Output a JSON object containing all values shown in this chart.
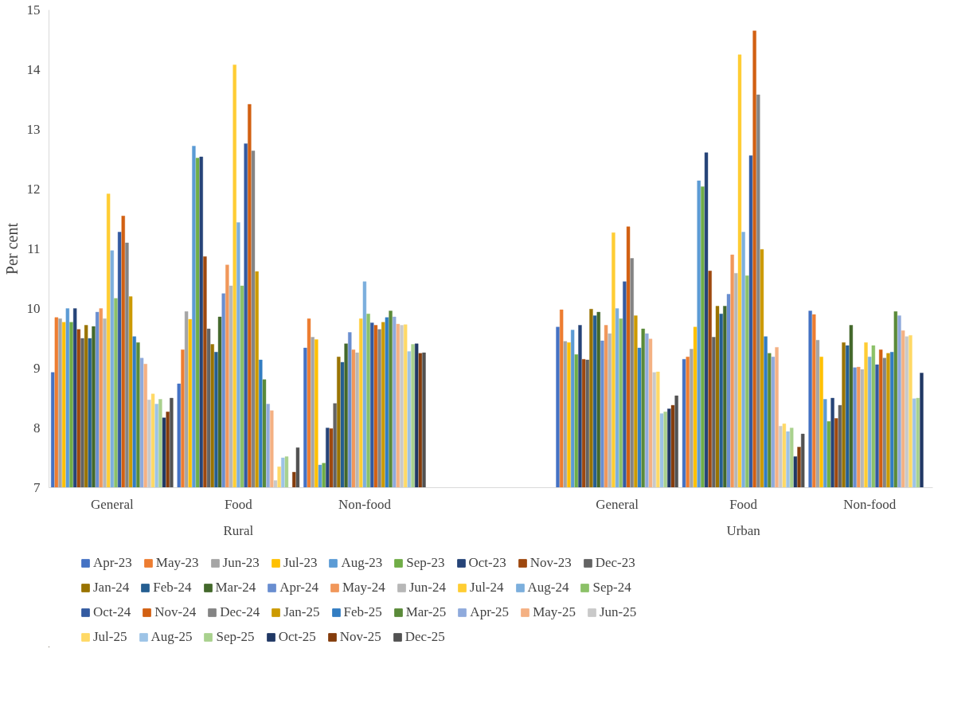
{
  "chart_data": {
    "type": "bar",
    "ylabel": "Per cent",
    "categories": [
      "General",
      "Food",
      "Non-food",
      null,
      "General",
      "Food",
      "Non-food"
    ],
    "annotations": [
      "Rural",
      "Urban"
    ],
    "ylim": [
      7,
      15
    ],
    "yticks": [
      7,
      8,
      9,
      10,
      11,
      12,
      13,
      14,
      15
    ],
    "legend": "bottom",
    "series": [
      {
        "name": "Apr-23",
        "color": "#4472c4",
        "values": [
          8.93,
          8.74,
          9.34,
          null,
          9.69,
          9.15,
          9.96
        ]
      },
      {
        "name": "May-23",
        "color": "#ed7d31",
        "values": [
          9.85,
          9.31,
          9.83,
          null,
          9.98,
          9.19,
          9.9
        ]
      },
      {
        "name": "Jun-23",
        "color": "#a5a5a5",
        "values": [
          9.83,
          9.95,
          9.52,
          null,
          9.45,
          9.32,
          9.47
        ]
      },
      {
        "name": "Jul-23",
        "color": "#ffc000",
        "values": [
          9.77,
          9.82,
          9.48,
          null,
          9.43,
          9.69,
          9.19
        ]
      },
      {
        "name": "Aug-23",
        "color": "#5b9bd5",
        "values": [
          10.0,
          12.72,
          7.38,
          null,
          9.64,
          12.14,
          8.48
        ]
      },
      {
        "name": "Sep-23",
        "color": "#70ad47",
        "values": [
          9.77,
          12.52,
          7.41,
          null,
          9.23,
          12.04,
          8.11
        ]
      },
      {
        "name": "Oct-23",
        "color": "#264478",
        "values": [
          10.0,
          12.54,
          8.0,
          null,
          9.72,
          12.61,
          8.5
        ]
      },
      {
        "name": "Nov-23",
        "color": "#9e480e",
        "values": [
          9.65,
          10.87,
          7.99,
          null,
          9.15,
          10.63,
          8.16
        ]
      },
      {
        "name": "Dec-23",
        "color": "#636363",
        "values": [
          9.5,
          9.66,
          8.41,
          null,
          9.14,
          9.52,
          8.38
        ]
      },
      {
        "name": "Jan-24",
        "color": "#997300",
        "values": [
          9.72,
          9.4,
          9.19,
          null,
          9.99,
          10.04,
          9.43
        ]
      },
      {
        "name": "Feb-24",
        "color": "#255e91",
        "values": [
          9.5,
          9.27,
          9.1,
          null,
          9.88,
          9.91,
          9.38
        ]
      },
      {
        "name": "Mar-24",
        "color": "#43682b",
        "values": [
          9.7,
          9.86,
          9.41,
          null,
          9.94,
          10.04,
          9.72
        ]
      },
      {
        "name": "Apr-24",
        "color": "#698ed0",
        "values": [
          9.94,
          10.25,
          9.6,
          null,
          9.46,
          10.24,
          9.01
        ]
      },
      {
        "name": "May-24",
        "color": "#f1975a",
        "values": [
          10.0,
          10.73,
          9.31,
          null,
          9.72,
          10.9,
          9.02
        ]
      },
      {
        "name": "Jun-24",
        "color": "#b7b7b7",
        "values": [
          9.83,
          10.38,
          9.26,
          null,
          9.58,
          10.59,
          8.98
        ]
      },
      {
        "name": "Jul-24",
        "color": "#ffcd33",
        "values": [
          11.92,
          14.08,
          9.83,
          null,
          11.27,
          14.25,
          9.43
        ]
      },
      {
        "name": "Aug-24",
        "color": "#7cafdd",
        "values": [
          10.97,
          11.44,
          10.45,
          null,
          10.0,
          11.28,
          9.19
        ]
      },
      {
        "name": "Sep-24",
        "color": "#8cc168",
        "values": [
          10.17,
          10.38,
          9.91,
          null,
          9.83,
          10.55,
          9.38
        ]
      },
      {
        "name": "Oct-24",
        "color": "#335aa1",
        "values": [
          11.28,
          12.76,
          9.76,
          null,
          10.45,
          12.56,
          9.06
        ]
      },
      {
        "name": "Nov-24",
        "color": "#d26012",
        "values": [
          11.55,
          13.42,
          9.72,
          null,
          11.37,
          14.65,
          9.31
        ]
      },
      {
        "name": "Dec-24",
        "color": "#848484",
        "values": [
          11.1,
          12.64,
          9.65,
          null,
          10.84,
          13.58,
          9.17
        ]
      },
      {
        "name": "Jan-25",
        "color": "#cc9a00",
        "values": [
          10.2,
          10.62,
          9.77,
          null,
          9.88,
          10.99,
          9.25
        ]
      },
      {
        "name": "Feb-25",
        "color": "#327dc2",
        "values": [
          9.53,
          9.14,
          9.85,
          null,
          9.34,
          9.53,
          9.27
        ]
      },
      {
        "name": "Mar-25",
        "color": "#5a8a39",
        "values": [
          9.43,
          8.81,
          9.96,
          null,
          9.66,
          9.25,
          9.95
        ]
      },
      {
        "name": "Apr-25",
        "color": "#8faadc",
        "values": [
          9.17,
          8.4,
          9.86,
          null,
          9.58,
          9.19,
          9.88
        ]
      },
      {
        "name": "May-25",
        "color": "#f4b183",
        "values": [
          9.07,
          8.29,
          9.74,
          null,
          9.49,
          9.35,
          9.63
        ]
      },
      {
        "name": "Jun-25",
        "color": "#c9c9c9",
        "values": [
          8.47,
          7.12,
          9.72,
          null,
          8.93,
          8.03,
          9.53
        ]
      },
      {
        "name": "Jul-25",
        "color": "#ffd966",
        "values": [
          8.57,
          7.35,
          9.73,
          null,
          8.94,
          8.07,
          9.55
        ]
      },
      {
        "name": "Aug-25",
        "color": "#9dc3e6",
        "values": [
          8.4,
          7.5,
          9.28,
          null,
          8.24,
          7.94,
          8.49
        ]
      },
      {
        "name": "Sep-25",
        "color": "#a9d18e",
        "values": [
          8.48,
          7.52,
          9.4,
          null,
          8.27,
          8.0,
          8.5
        ]
      },
      {
        "name": "Oct-25",
        "color": "#203864",
        "values": [
          8.17,
          null,
          9.41,
          null,
          8.32,
          7.52,
          8.92
        ]
      },
      {
        "name": "Nov-25",
        "color": "#843c0c",
        "values": [
          8.27,
          7.26,
          9.25,
          null,
          8.38,
          7.68,
          null
        ]
      },
      {
        "name": "Dec-25",
        "color": "#525252",
        "values": [
          8.5,
          7.67,
          9.26,
          null,
          8.54,
          7.9,
          null
        ]
      }
    ]
  }
}
